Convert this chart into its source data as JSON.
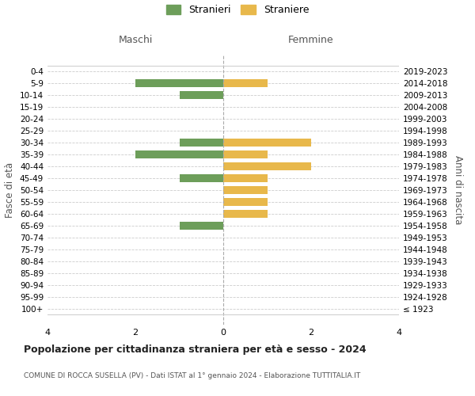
{
  "age_groups": [
    "100+",
    "95-99",
    "90-94",
    "85-89",
    "80-84",
    "75-79",
    "70-74",
    "65-69",
    "60-64",
    "55-59",
    "50-54",
    "45-49",
    "40-44",
    "35-39",
    "30-34",
    "25-29",
    "20-24",
    "15-19",
    "10-14",
    "5-9",
    "0-4"
  ],
  "birth_years": [
    "≤ 1923",
    "1924-1928",
    "1929-1933",
    "1934-1938",
    "1939-1943",
    "1944-1948",
    "1949-1953",
    "1954-1958",
    "1959-1963",
    "1964-1968",
    "1969-1973",
    "1974-1978",
    "1979-1983",
    "1984-1988",
    "1989-1993",
    "1994-1998",
    "1999-2003",
    "2004-2008",
    "2009-2013",
    "2014-2018",
    "2019-2023"
  ],
  "males": [
    0,
    0,
    0,
    0,
    0,
    0,
    0,
    -1,
    0,
    0,
    0,
    -1,
    0,
    -2,
    -1,
    0,
    0,
    0,
    -1,
    -2,
    0
  ],
  "females": [
    0,
    0,
    0,
    0,
    0,
    0,
    0,
    0,
    1,
    1,
    1,
    1,
    2,
    1,
    2,
    0,
    0,
    0,
    0,
    1,
    0
  ],
  "male_color": "#6d9e5a",
  "female_color": "#e8b84b",
  "male_label": "Stranieri",
  "female_label": "Straniere",
  "title": "Popolazione per cittadinanza straniera per età e sesso - 2024",
  "subtitle": "COMUNE DI ROCCA SUSELLA (PV) - Dati ISTAT al 1° gennaio 2024 - Elaborazione TUTTITALIA.IT",
  "left_axis_label": "Fasce di età",
  "right_axis_label": "Anni di nascita",
  "maschi_label": "Maschi",
  "femmine_label": "Femmine",
  "xlim": [
    -4,
    4
  ],
  "xticks": [
    -4,
    -2,
    0,
    2,
    4
  ],
  "xticklabels": [
    "4",
    "2",
    "0",
    "2",
    "4"
  ],
  "background_color": "#ffffff",
  "grid_color": "#cccccc"
}
